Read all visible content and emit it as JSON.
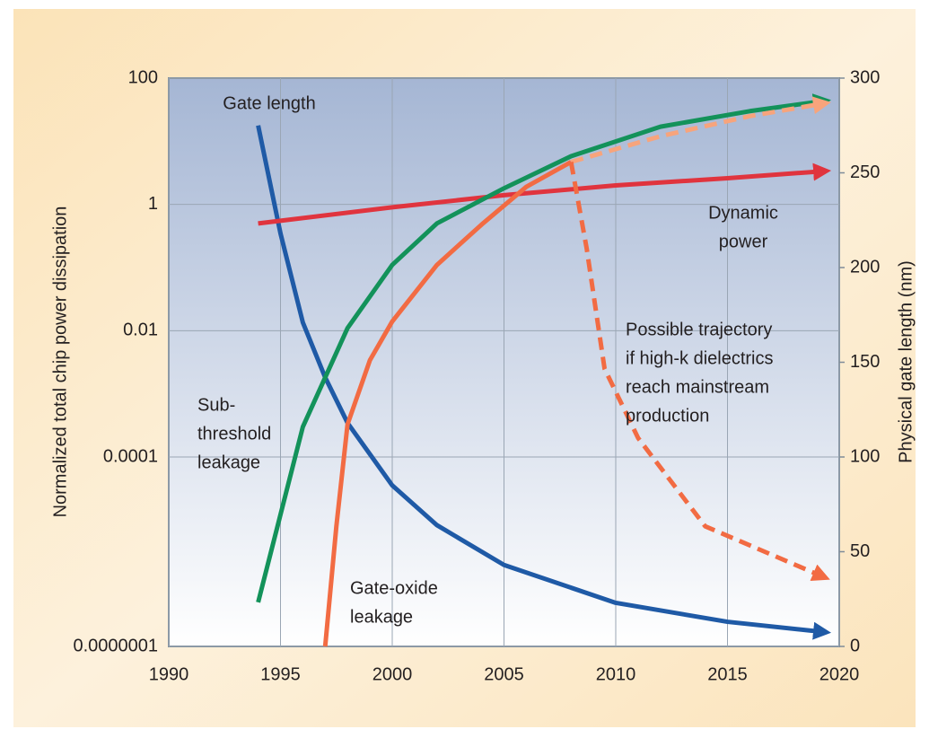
{
  "chart_data": {
    "type": "line",
    "ylabel": "Normalized total chip power dissipation",
    "y2label": "Physical gate length (nm)",
    "xlim": [
      1990,
      2020
    ],
    "xticks": [
      1990,
      1995,
      2000,
      2005,
      2010,
      2015,
      2020
    ],
    "ylim": [
      1e-07,
      100
    ],
    "yscale": "log",
    "yticks": [
      100,
      1,
      0.01,
      0.0001,
      {
        "value": 1e-07,
        "label": "0.0000001"
      }
    ],
    "y2lim": [
      0,
      300
    ],
    "y2ticks": [
      0,
      50,
      100,
      150,
      200,
      250,
      300
    ],
    "grid": true,
    "series": [
      {
        "label": [
          "Gate length"
        ],
        "color": "#1f5aa6",
        "axis": "y2",
        "x": [
          1994,
          1995,
          1996,
          1997,
          1998,
          2000,
          2002,
          2005,
          2010,
          2015,
          2019
        ],
        "values": [
          275,
          218,
          171,
          142,
          118,
          85,
          64,
          43,
          23,
          13,
          8
        ]
      },
      {
        "label": [
          "Dynamic",
          "power"
        ],
        "color": "#e0343e",
        "x": [
          1994,
          2000,
          2005,
          2010,
          2015,
          2019
        ],
        "values": [
          0.5,
          0.9,
          1.4,
          2.0,
          2.6,
          3.3
        ]
      },
      {
        "label": [
          "Sub-",
          "threshold",
          "leakage"
        ],
        "color": "#13925a",
        "x": [
          1994,
          1996,
          1998,
          2000,
          2002,
          2005,
          2008,
          2012,
          2016,
          2019
        ],
        "values": [
          5e-07,
          0.0003,
          0.011,
          0.11,
          0.5,
          1.8,
          5.8,
          17,
          30,
          42
        ]
      },
      {
        "label": [
          "Gate-oxide",
          "leakage"
        ],
        "color": "#f26b43",
        "x": [
          1997,
          1997.5,
          1998,
          1999,
          2000,
          2002,
          2004,
          2006,
          2008
        ],
        "values": [
          1e-07,
          8e-06,
          0.00033,
          0.0034,
          0.014,
          0.11,
          0.48,
          1.9,
          4.7
        ]
      },
      {
        "color": "#f7a47c",
        "style": "dashed",
        "x": [
          2008,
          2012,
          2016,
          2019
        ],
        "values": [
          4.7,
          12,
          25,
          38
        ]
      },
      {
        "label": [
          "Possible trajectory",
          "if high-k dielectrics",
          "reach mainstream",
          "production"
        ],
        "color": "#f26b43",
        "style": "dashed",
        "x": [
          2008,
          2008.7,
          2009.5,
          2011,
          2014,
          2019
        ],
        "values": [
          4.7,
          0.2,
          0.0025,
          0.0002,
          8e-06,
          1.4e-06
        ]
      }
    ]
  }
}
